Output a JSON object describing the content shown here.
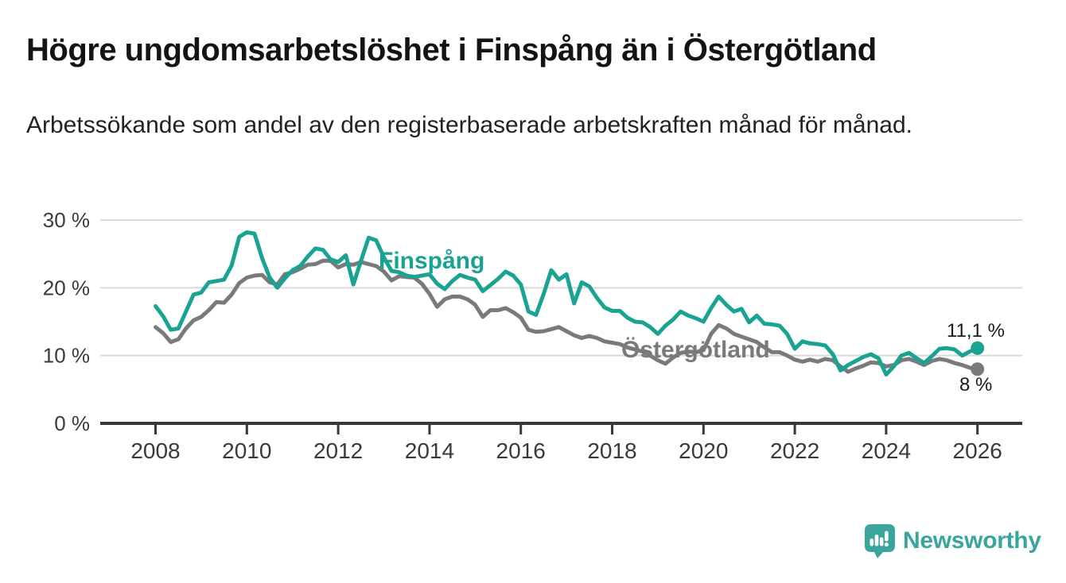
{
  "header": {
    "title": "Högre ungdomsarbetslöshet i Finspång än i Östergötland",
    "subtitle": "Arbetssökande som andel av den registerbaserade arbetskraften månad för månad."
  },
  "footer": {
    "brand": "Newsworthy",
    "logo_icon": "newsworthy-speech-bubble-bars-icon"
  },
  "colors": {
    "finspang": "#1aa392",
    "ostergotland": "#7a7a7a",
    "axis": "#383838",
    "gridline": "#d9d9d9",
    "tick_text": "#3a3a3a",
    "end_label_text": "#1a1a1a",
    "brand": "#3aa59d"
  },
  "chart_data": {
    "type": "line",
    "title": "Högre ungdomsarbetslöshet i Finspång än i Östergötland",
    "subtitle": "Arbetssökande som andel av den registerbaserade arbetskraften månad för månad.",
    "xlabel": "",
    "ylabel": "",
    "unit": "%",
    "grid": "horizontal",
    "legend_position": "inline-labels",
    "xlim": [
      2007.8,
      2027.0
    ],
    "ylim": [
      0,
      32
    ],
    "x_ticks": [
      "2008",
      "2010",
      "2012",
      "2014",
      "2016",
      "2018",
      "2020",
      "2022",
      "2024",
      "2026"
    ],
    "y_ticks": [
      {
        "value": 0,
        "label": "0 %"
      },
      {
        "value": 10,
        "label": "10 %"
      },
      {
        "value": 20,
        "label": "20 %"
      },
      {
        "value": 30,
        "label": "30 %"
      }
    ],
    "x_start": 2008.0,
    "x_step_years": 0.1666667,
    "series": [
      {
        "name": "Östergötland",
        "color_key": "ostergotland",
        "inline_label": {
          "text": "Östergötland",
          "x": 781,
          "y": 210
        },
        "end_label": {
          "text": "8 %",
          "x": 1206,
          "y": 252
        },
        "end_value": 8.0,
        "values": [
          14.2,
          13.3,
          12.0,
          12.4,
          14.0,
          15.2,
          15.7,
          16.7,
          17.9,
          17.8,
          19.0,
          20.7,
          21.5,
          21.8,
          21.9,
          20.8,
          20.5,
          22.0,
          22.3,
          22.8,
          23.4,
          23.5,
          24.0,
          24.0,
          23.0,
          23.5,
          23.4,
          23.8,
          23.5,
          23.2,
          22.4,
          21.1,
          21.7,
          21.6,
          21.5,
          20.6,
          19.1,
          17.2,
          18.3,
          18.7,
          18.7,
          18.3,
          17.5,
          15.7,
          16.7,
          16.7,
          17.0,
          16.4,
          15.6,
          13.8,
          13.5,
          13.6,
          13.9,
          14.2,
          13.6,
          13.0,
          12.6,
          12.9,
          12.6,
          12.1,
          11.9,
          11.7,
          11.2,
          10.9,
          10.6,
          10.0,
          9.3,
          8.8,
          9.7,
          10.4,
          10.6,
          10.5,
          10.8,
          13.2,
          14.5,
          14.0,
          13.2,
          12.8,
          12.4,
          12.0,
          11.2,
          10.5,
          10.5,
          10.0,
          9.4,
          9.1,
          9.4,
          9.1,
          9.5,
          9.3,
          8.4,
          7.6,
          8.1,
          8.5,
          9.0,
          8.9,
          8.4,
          8.6,
          9.3,
          9.5,
          9.1,
          8.6,
          9.2,
          9.5,
          9.3,
          8.9,
          8.6,
          8.2,
          8.0
        ]
      },
      {
        "name": "Finspång",
        "color_key": "finspang",
        "inline_label": {
          "text": "Finspång",
          "x": 476,
          "y": 98
        },
        "end_label": {
          "text": "11,1 %",
          "x": 1190,
          "y": 184
        },
        "end_value": 11.1,
        "values": [
          17.3,
          15.8,
          13.8,
          14.0,
          16.5,
          19.0,
          19.3,
          20.8,
          21.0,
          21.2,
          23.3,
          27.5,
          28.2,
          28.0,
          24.4,
          21.5,
          20.0,
          21.4,
          22.6,
          23.2,
          24.6,
          25.8,
          25.6,
          24.2,
          23.8,
          24.8,
          20.5,
          24.0,
          27.4,
          27.0,
          24.5,
          22.5,
          22.3,
          21.8,
          21.6,
          21.8,
          22.0,
          20.6,
          19.8,
          21.0,
          21.9,
          21.5,
          21.2,
          19.5,
          20.4,
          21.3,
          22.4,
          21.8,
          20.5,
          16.5,
          16.0,
          19.1,
          22.6,
          21.2,
          22.0,
          17.7,
          20.8,
          20.2,
          18.5,
          17.1,
          16.6,
          16.6,
          15.6,
          15.0,
          14.9,
          14.2,
          13.2,
          14.4,
          15.3,
          16.5,
          15.9,
          15.5,
          15.0,
          17.0,
          18.7,
          17.5,
          16.5,
          16.9,
          14.9,
          15.9,
          14.7,
          14.6,
          14.4,
          13.2,
          11.0,
          12.1,
          11.8,
          11.7,
          11.5,
          10.2,
          7.8,
          8.6,
          9.2,
          9.8,
          10.2,
          9.6,
          7.2,
          8.4,
          10.0,
          10.4,
          9.6,
          8.9,
          9.9,
          11.0,
          11.1,
          10.9,
          10.0,
          10.6,
          11.1
        ]
      }
    ]
  }
}
